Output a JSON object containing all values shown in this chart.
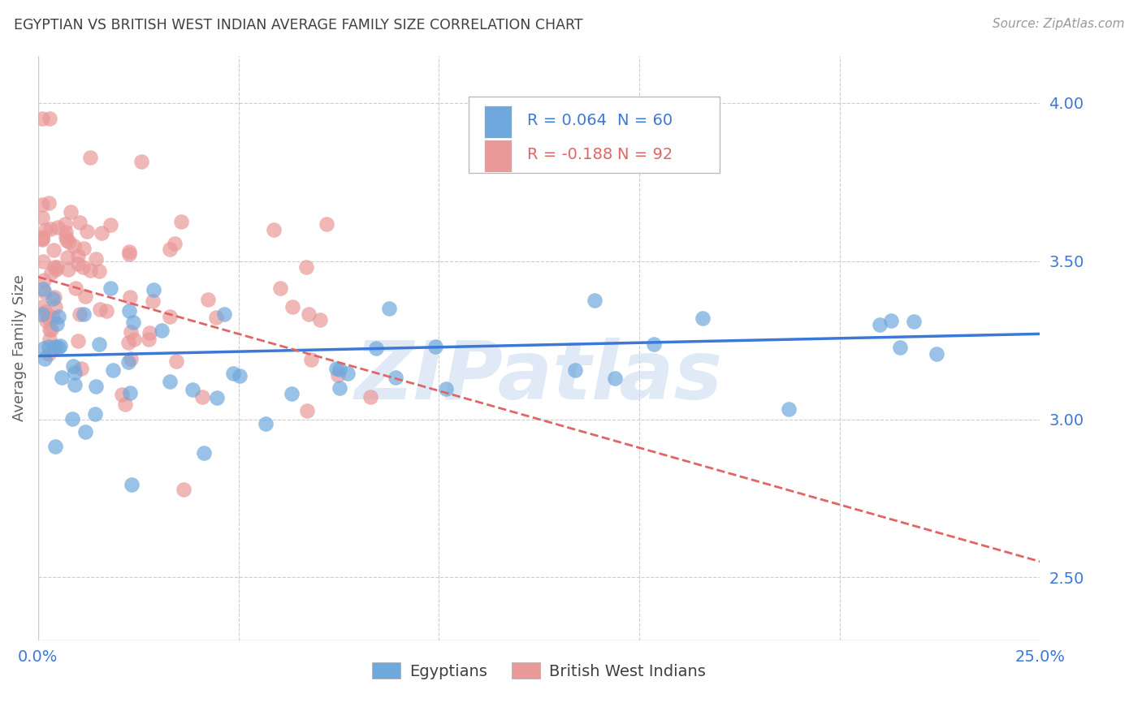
{
  "title": "EGYPTIAN VS BRITISH WEST INDIAN AVERAGE FAMILY SIZE CORRELATION CHART",
  "source": "Source: ZipAtlas.com",
  "ylabel": "Average Family Size",
  "right_yticks": [
    2.5,
    3.0,
    3.5,
    4.0
  ],
  "watermark": "ZIPatlas",
  "legend_r1": "0.064",
  "legend_n1": "60",
  "legend_r2": "-0.188",
  "legend_n2": "92",
  "blue_color": "#6fa8dc",
  "pink_color": "#ea9999",
  "blue_line_color": "#3c78d8",
  "pink_line_color": "#e06666",
  "title_color": "#404040",
  "right_axis_color": "#3c78d8",
  "xlim": [
    0.0,
    0.25
  ],
  "ylim": [
    2.3,
    4.15
  ],
  "grid_color": "#cccccc",
  "watermark_color": "#c8d8f0"
}
